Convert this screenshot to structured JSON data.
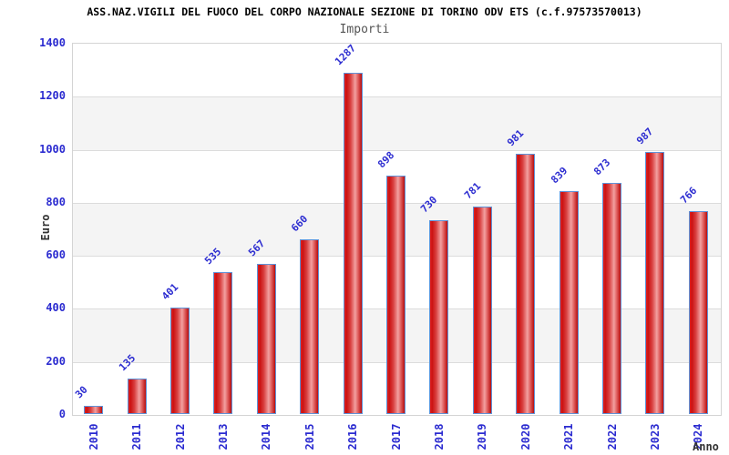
{
  "header": {
    "title": "ASS.NAZ.VIGILI DEL FUOCO DEL CORPO NAZIONALE SEZIONE DI TORINO ODV ETS (c.f.97573570013)",
    "subtitle": "Importi"
  },
  "axes": {
    "y_label": "Euro",
    "x_label": "Anno"
  },
  "chart_data": {
    "type": "bar",
    "title": "ASS.NAZ.VIGILI DEL FUOCO DEL CORPO NAZIONALE SEZIONE DI TORINO ODV ETS (c.f.97573570013)",
    "subtitle": "Importi",
    "xlabel": "Anno",
    "ylabel": "Euro",
    "categories": [
      "2010",
      "2011",
      "2012",
      "2013",
      "2014",
      "2015",
      "2016",
      "2017",
      "2018",
      "2019",
      "2020",
      "2021",
      "2022",
      "2023",
      "2024"
    ],
    "values": [
      30,
      135,
      401,
      535,
      567,
      660,
      1287,
      898,
      730,
      781,
      981,
      839,
      873,
      987,
      766
    ],
    "ylim": [
      0,
      1400
    ],
    "ytick_step": 200,
    "grid": true,
    "legend_position": "none",
    "band_fill_alternating": true,
    "colors": {
      "bar_gradient": [
        "#e02020",
        "#cb1212",
        "#d94040",
        "#f2a0a0",
        "#e06060",
        "#b80e0e"
      ],
      "bar_border": "#5f93d8",
      "tick_text": "#2b2bd0",
      "axis_title_text": "#333333",
      "subtitle_text": "#555555",
      "band_gray": "#f4f4f4",
      "grid_line": "#dcdcdc",
      "plot_border": "#d4d4d4",
      "background": "#ffffff"
    }
  }
}
